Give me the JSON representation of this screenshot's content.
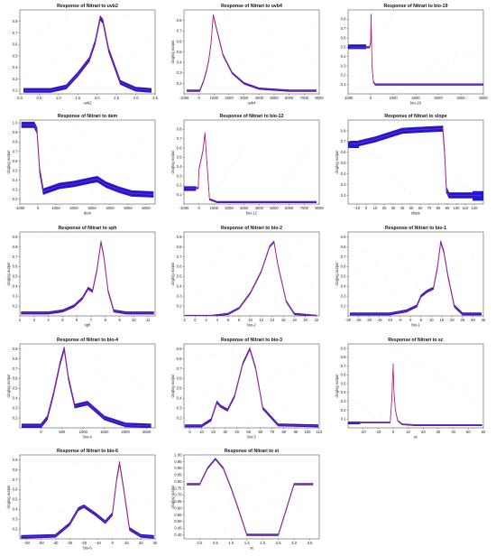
{
  "colors": {
    "band": "#1a1adc",
    "line": "#d81b60",
    "axis": "#333333",
    "noise": "#7fd7f0"
  },
  "chart_data": [
    {
      "type": "line",
      "title": "Response of Nitrari to uvb2",
      "xlabel": "uvb2",
      "ylabel": "",
      "xlim": [
        0,
        3.5
      ],
      "ylim": [
        0.17,
        0.9
      ],
      "xticks": [
        "0.0",
        "0.5",
        "1.0",
        "1.5",
        "2.0",
        "2.5",
        "3.0",
        "3.5"
      ],
      "xtick_values": [
        0,
        0.5,
        1,
        1.5,
        2,
        2.5,
        3,
        3.5
      ],
      "yticks": [
        "0.2",
        "0.3",
        "0.4",
        "0.5",
        "0.6",
        "0.7",
        "0.8"
      ],
      "ytick_values": [
        0.2,
        0.3,
        0.4,
        0.5,
        0.6,
        0.7,
        0.8
      ],
      "x": [
        0.1,
        0.8,
        1.2,
        1.5,
        1.8,
        1.95,
        2.08,
        2.15,
        2.3,
        2.6,
        3.0,
        3.4
      ],
      "y": [
        0.2,
        0.2,
        0.23,
        0.34,
        0.47,
        0.62,
        0.83,
        0.8,
        0.55,
        0.27,
        0.21,
        0.2
      ],
      "band_width": 0.018
    },
    {
      "type": "line",
      "title": "Response of Nitrari to uvb4",
      "xlabel": "uvb4",
      "ylabel": "cloglog output",
      "xlim": [
        -1000,
        8000
      ],
      "ylim": [
        0.1,
        0.9
      ],
      "xticks": [
        "-1000",
        "0",
        "1000",
        "2000",
        "3000",
        "4000",
        "5000",
        "6000",
        "7000",
        "8000"
      ],
      "xtick_values": [
        -1000,
        0,
        1000,
        2000,
        3000,
        4000,
        5000,
        6000,
        7000,
        8000
      ],
      "yticks": [
        "0.2",
        "0.3",
        "0.4",
        "0.5",
        "0.6",
        "0.7",
        "0.8"
      ],
      "ytick_values": [
        0.2,
        0.3,
        0.4,
        0.5,
        0.6,
        0.7,
        0.8
      ],
      "x": [
        -800,
        50,
        300,
        500,
        650,
        800,
        950,
        1200,
        1600,
        2200,
        3000,
        4000,
        6000,
        7800
      ],
      "y": [
        0.13,
        0.13,
        0.22,
        0.32,
        0.42,
        0.58,
        0.85,
        0.7,
        0.47,
        0.3,
        0.2,
        0.15,
        0.13,
        0.13
      ],
      "band_width": 0.008
    },
    {
      "type": "line",
      "title": "Response of Nitrari to bio-19",
      "xlabel": "bio-19",
      "ylabel": "",
      "xlim": [
        -1000,
        5000
      ],
      "ylim": [
        0.0,
        0.9
      ],
      "xticks": [
        "-1000",
        "0",
        "1000",
        "2000",
        "3000",
        "4000",
        "5000"
      ],
      "xtick_values": [
        -1000,
        0,
        1000,
        2000,
        3000,
        4000,
        5000
      ],
      "yticks": [
        "0.1",
        "0.2",
        "0.3",
        "0.4",
        "0.5",
        "0.6",
        "0.7",
        "0.8"
      ],
      "ytick_values": [
        0.1,
        0.2,
        0.3,
        0.4,
        0.5,
        0.6,
        0.7,
        0.8
      ],
      "x": [
        -900,
        -50,
        0,
        20,
        60,
        120,
        200,
        400,
        2000,
        5000
      ],
      "y": [
        0.5,
        0.5,
        0.55,
        0.85,
        0.3,
        0.13,
        0.1,
        0.1,
        0.1,
        0.1
      ],
      "band_width": 0.008,
      "blocks": [
        {
          "x0": -1000,
          "x1": -200,
          "y0": 0.48,
          "y1": 0.53
        }
      ]
    },
    {
      "type": "line",
      "title": "Response of Nitrari to dem",
      "xlabel": "dem",
      "ylabel": "cloglog output",
      "xlim": [
        -1000,
        6500
      ],
      "ylim": [
        0.15,
        1.03
      ],
      "xticks": [
        "-1000",
        "0",
        "1000",
        "2000",
        "3000",
        "4000",
        "5000",
        "6000"
      ],
      "xtick_values": [
        -1000,
        0,
        1000,
        2000,
        3000,
        4000,
        5000,
        6000
      ],
      "yticks": [
        "0.2",
        "0.3",
        "0.4",
        "0.5",
        "0.6",
        "0.7",
        "0.8",
        "0.9",
        "1.0"
      ],
      "ytick_values": [
        0.2,
        0.3,
        0.4,
        0.5,
        0.6,
        0.7,
        0.8,
        0.9,
        1.0
      ],
      "x": [
        -900,
        -200,
        -50,
        100,
        300,
        600,
        1200,
        2000,
        3000,
        3300,
        3800,
        4500,
        5200,
        6400
      ],
      "y": [
        0.98,
        0.98,
        0.92,
        0.5,
        0.28,
        0.3,
        0.34,
        0.36,
        0.4,
        0.41,
        0.35,
        0.3,
        0.26,
        0.25
      ],
      "band_width": 0.03
    },
    {
      "type": "line",
      "title": "Response of Nitrari to bio-12",
      "xlabel": "bio-12",
      "ylabel": "cloglog output",
      "xlim": [
        -1000,
        8000
      ],
      "ylim": [
        0.0,
        0.9
      ],
      "xticks": [
        "-1000",
        "0",
        "1000",
        "2000",
        "3000",
        "4000",
        "5000",
        "6000",
        "7000",
        "8000"
      ],
      "xtick_values": [
        -1000,
        0,
        1000,
        2000,
        3000,
        4000,
        5000,
        6000,
        7000,
        8000
      ],
      "yticks": [
        "0.1",
        "0.2",
        "0.3",
        "0.4",
        "0.5",
        "0.6",
        "0.7",
        "0.8"
      ],
      "ytick_values": [
        0.1,
        0.2,
        0.3,
        0.4,
        0.5,
        0.6,
        0.7,
        0.8
      ],
      "x": [
        -900,
        -50,
        0,
        100,
        250,
        400,
        500,
        700,
        1200,
        3000,
        7800
      ],
      "y": [
        0.17,
        0.17,
        0.37,
        0.45,
        0.56,
        0.76,
        0.5,
        0.05,
        0.02,
        0.02,
        0.02
      ],
      "band_width": 0.008,
      "blocks": [
        {
          "x0": -1000,
          "x1": -200,
          "y0": 0.14,
          "y1": 0.19
        }
      ]
    },
    {
      "type": "line",
      "title": "Response of Nitrari to slope",
      "xlabel": "slope",
      "ylabel": "cloglog output",
      "xlim": [
        -20,
        130
      ],
      "ylim": [
        0.12,
        0.9
      ],
      "xticks": [
        "-10",
        "0",
        "10",
        "20",
        "30",
        "40",
        "50",
        "60",
        "70",
        "80",
        "90",
        "100",
        "110",
        "120"
      ],
      "xtick_values": [
        -10,
        0,
        10,
        20,
        30,
        40,
        50,
        60,
        70,
        80,
        90,
        100,
        110,
        120
      ],
      "yticks": [
        "0.2",
        "0.3",
        "0.4",
        "0.5",
        "0.6",
        "0.7",
        "0.8"
      ],
      "ytick_values": [
        0.2,
        0.3,
        0.4,
        0.5,
        0.6,
        0.7,
        0.8
      ],
      "x": [
        -18,
        -10,
        10,
        40,
        60,
        85,
        87,
        89,
        92,
        128
      ],
      "y": [
        0.68,
        0.68,
        0.72,
        0.8,
        0.81,
        0.82,
        0.6,
        0.25,
        0.2,
        0.2
      ],
      "band_width": 0.025,
      "blocks": [
        {
          "x0": -20,
          "x1": -8,
          "y0": 0.64,
          "y1": 0.7
        },
        {
          "x0": 118,
          "x1": 130,
          "y0": 0.15,
          "y1": 0.24
        }
      ]
    },
    {
      "type": "line",
      "title": "Response of Nitrari to sph",
      "xlabel": "sph",
      "ylabel": "cloglog output",
      "xlim": [
        2,
        11.5
      ],
      "ylim": [
        0.1,
        0.95
      ],
      "xticks": [
        "2",
        "3",
        "4",
        "5",
        "6",
        "7",
        "8",
        "9",
        "10",
        "11"
      ],
      "xtick_values": [
        2,
        3,
        4,
        5,
        6,
        7,
        8,
        9,
        10,
        11
      ],
      "yticks": [
        "0.2",
        "0.3",
        "0.4",
        "0.5",
        "0.6",
        "0.7",
        "0.8",
        "0.9"
      ],
      "ytick_values": [
        0.2,
        0.3,
        0.4,
        0.5,
        0.6,
        0.7,
        0.8,
        0.9
      ],
      "x": [
        2.1,
        4.0,
        5.0,
        5.8,
        6.4,
        6.8,
        7.1,
        7.4,
        7.7,
        7.9,
        8.2,
        8.6,
        9.5,
        11.4
      ],
      "y": [
        0.13,
        0.13,
        0.15,
        0.2,
        0.28,
        0.38,
        0.35,
        0.55,
        0.85,
        0.7,
        0.35,
        0.15,
        0.13,
        0.13
      ],
      "band_width": 0.012
    },
    {
      "type": "line",
      "title": "Response of Nitrari to bio-2",
      "xlabel": "bio-2",
      "ylabel": "cloglog output",
      "xlim": [
        -2,
        22.5
      ],
      "ylim": [
        0.1,
        0.95
      ],
      "xticks": [
        "-2",
        "0",
        "2",
        "4",
        "6",
        "8",
        "10",
        "12",
        "14",
        "16",
        "18",
        "20",
        "22"
      ],
      "xtick_values": [
        -2,
        0,
        2,
        4,
        6,
        8,
        10,
        12,
        14,
        16,
        18,
        20,
        22
      ],
      "yticks": [
        "0.2",
        "0.3",
        "0.4",
        "0.5",
        "0.6",
        "0.7",
        "0.8",
        "0.9"
      ],
      "ytick_values": [
        0.2,
        0.3,
        0.4,
        0.5,
        0.6,
        0.7,
        0.8,
        0.9
      ],
      "x": [
        -1.8,
        3,
        6,
        8,
        10,
        12,
        13.5,
        14.3,
        15,
        16.5,
        18,
        22
      ],
      "y": [
        0.1,
        0.1,
        0.12,
        0.18,
        0.33,
        0.55,
        0.8,
        0.85,
        0.62,
        0.25,
        0.12,
        0.1
      ],
      "band_width": 0.008
    },
    {
      "type": "line",
      "title": "Response of Nitrari to bio-1",
      "xlabel": "bio-1",
      "ylabel": "cloglog output",
      "xlim": [
        -30,
        35
      ],
      "ylim": [
        0.1,
        0.95
      ],
      "xticks": [
        "-30",
        "-25",
        "-20",
        "-15",
        "-10",
        "-5",
        "0",
        "5",
        "10",
        "15",
        "20",
        "25",
        "30",
        "35"
      ],
      "xtick_values": [
        -30,
        -25,
        -20,
        -15,
        -10,
        -5,
        0,
        5,
        10,
        15,
        20,
        25,
        30,
        35
      ],
      "yticks": [
        "0.2",
        "0.3",
        "0.4",
        "0.5",
        "0.6",
        "0.7",
        "0.8",
        "0.9"
      ],
      "ytick_values": [
        0.2,
        0.3,
        0.4,
        0.5,
        0.6,
        0.7,
        0.8,
        0.9
      ],
      "x": [
        -29,
        -10,
        -2,
        3,
        5,
        8,
        11,
        13,
        14.5,
        16,
        18,
        21,
        25,
        34
      ],
      "y": [
        0.12,
        0.12,
        0.15,
        0.2,
        0.3,
        0.35,
        0.38,
        0.6,
        0.85,
        0.75,
        0.5,
        0.2,
        0.12,
        0.12
      ],
      "band_width": 0.012
    },
    {
      "type": "line",
      "title": "Response of Nitrari to bio-4",
      "xlabel": "bio-4",
      "ylabel": "cloglog output",
      "xlim": [
        -500,
        2700
      ],
      "ylim": [
        0.1,
        0.95
      ],
      "xticks": [
        "0",
        "500",
        "1000",
        "1500",
        "2000",
        "2500"
      ],
      "xtick_values": [
        0,
        500,
        1000,
        1500,
        2000,
        2500
      ],
      "yticks": [
        "0.2",
        "0.3",
        "0.4",
        "0.5",
        "0.6",
        "0.7",
        "0.8",
        "0.9"
      ],
      "ytick_values": [
        0.2,
        0.3,
        0.4,
        0.5,
        0.6,
        0.7,
        0.8,
        0.9
      ],
      "x": [
        -450,
        0,
        150,
        300,
        450,
        550,
        650,
        800,
        1100,
        1500,
        2000,
        2600
      ],
      "y": [
        0.12,
        0.12,
        0.2,
        0.45,
        0.75,
        0.9,
        0.6,
        0.32,
        0.35,
        0.2,
        0.13,
        0.12
      ],
      "band_width": 0.02
    },
    {
      "type": "line",
      "title": "Response of Nitrari to bio-3",
      "xlabel": "bio-3",
      "ylabel": "cloglog output",
      "xlim": [
        -5,
        110
      ],
      "ylim": [
        0.1,
        0.95
      ],
      "xticks": [
        "0",
        "10",
        "20",
        "30",
        "40",
        "50",
        "60",
        "70",
        "80",
        "90",
        "100",
        "110"
      ],
      "xtick_values": [
        0,
        10,
        20,
        30,
        40,
        50,
        60,
        70,
        80,
        90,
        100,
        110
      ],
      "yticks": [
        "0.2",
        "0.3",
        "0.4",
        "0.5",
        "0.6",
        "0.7",
        "0.8",
        "0.9"
      ],
      "ytick_values": [
        0.2,
        0.3,
        0.4,
        0.5,
        0.6,
        0.7,
        0.8,
        0.9
      ],
      "x": [
        -4,
        10,
        18,
        23,
        26,
        32,
        38,
        45,
        51,
        56,
        62,
        75,
        109
      ],
      "y": [
        0.12,
        0.12,
        0.18,
        0.36,
        0.32,
        0.28,
        0.42,
        0.75,
        0.9,
        0.7,
        0.3,
        0.13,
        0.12
      ],
      "band_width": 0.012
    },
    {
      "type": "line",
      "title": "Response of Nitrari to sc",
      "xlabel": "sc",
      "ylabel": "cloglog output",
      "xlim": [
        -30,
        60
      ],
      "ylim": [
        0.0,
        0.95
      ],
      "xticks": [
        "-20",
        "-10",
        "0",
        "10",
        "20",
        "30",
        "40",
        "50",
        "60"
      ],
      "xtick_values": [
        -20,
        -10,
        0,
        10,
        20,
        30,
        40,
        50,
        60
      ],
      "yticks": [
        "0.1",
        "0.2",
        "0.3",
        "0.4",
        "0.5",
        "0.6",
        "0.7",
        "0.8",
        "0.9"
      ],
      "ytick_values": [
        0.1,
        0.2,
        0.3,
        0.4,
        0.5,
        0.6,
        0.7,
        0.8,
        0.9
      ],
      "x": [
        -29,
        -2,
        -1,
        0,
        0.5,
        1.5,
        3,
        6,
        15,
        59
      ],
      "y": [
        0.06,
        0.06,
        0.3,
        0.72,
        0.4,
        0.2,
        0.08,
        0.04,
        0.03,
        0.03
      ],
      "band_width": 0.006,
      "blocks": [
        {
          "x0": -30,
          "x1": -22,
          "y0": 0.04,
          "y1": 0.07
        }
      ]
    },
    {
      "type": "line",
      "title": "Response of Nitrari to bio-6",
      "xlabel": "bio-6",
      "ylabel": "cloglog output",
      "xlim": [
        -65,
        30
      ],
      "ylim": [
        0.1,
        0.95
      ],
      "xticks": [
        "-60",
        "-50",
        "-40",
        "-30",
        "-20",
        "-10",
        "0",
        "10",
        "20",
        "30"
      ],
      "xtick_values": [
        -60,
        -50,
        -40,
        -30,
        -20,
        -10,
        0,
        10,
        20,
        30
      ],
      "yticks": [
        "0.2",
        "0.3",
        "0.4",
        "0.5",
        "0.6",
        "0.7",
        "0.8",
        "0.9"
      ],
      "ytick_values": [
        0.2,
        0.3,
        0.4,
        0.5,
        0.6,
        0.7,
        0.8,
        0.9
      ],
      "x": [
        -64,
        -40,
        -30,
        -24,
        -20,
        -12,
        -5,
        0,
        3,
        5,
        8,
        12,
        20,
        29
      ],
      "y": [
        0.12,
        0.13,
        0.25,
        0.4,
        0.43,
        0.35,
        0.27,
        0.35,
        0.7,
        0.87,
        0.6,
        0.2,
        0.13,
        0.12
      ],
      "band_width": 0.015
    },
    {
      "type": "line",
      "title": "Response of Nitrari to st",
      "xlabel": "st",
      "ylabel": "cloglog output",
      "xlim": [
        -0.5,
        3.8
      ],
      "ylim": [
        0.37,
        1.0
      ],
      "xticks": [
        "0.0",
        "0.5",
        "1.0",
        "1.5",
        "2.0",
        "2.5",
        "3.0",
        "3.5"
      ],
      "xtick_values": [
        0,
        0.5,
        1,
        1.5,
        2,
        2.5,
        3,
        3.5
      ],
      "yticks": [
        "0.40",
        "0.45",
        "0.50",
        "0.55",
        "0.60",
        "0.65",
        "0.70",
        "0.75",
        "0.80",
        "0.85",
        "0.90",
        "0.95",
        "1.00"
      ],
      "ytick_values": [
        0.4,
        0.45,
        0.5,
        0.55,
        0.6,
        0.65,
        0.7,
        0.75,
        0.8,
        0.85,
        0.9,
        0.95,
        1.0
      ],
      "x": [
        -0.4,
        0,
        0.25,
        0.5,
        0.75,
        1.0,
        1.25,
        1.5,
        2.5,
        3.0,
        3.6
      ],
      "y": [
        0.78,
        0.78,
        0.9,
        0.97,
        0.9,
        0.75,
        0.58,
        0.4,
        0.4,
        0.78,
        0.78
      ],
      "band_width": 0.006
    }
  ]
}
